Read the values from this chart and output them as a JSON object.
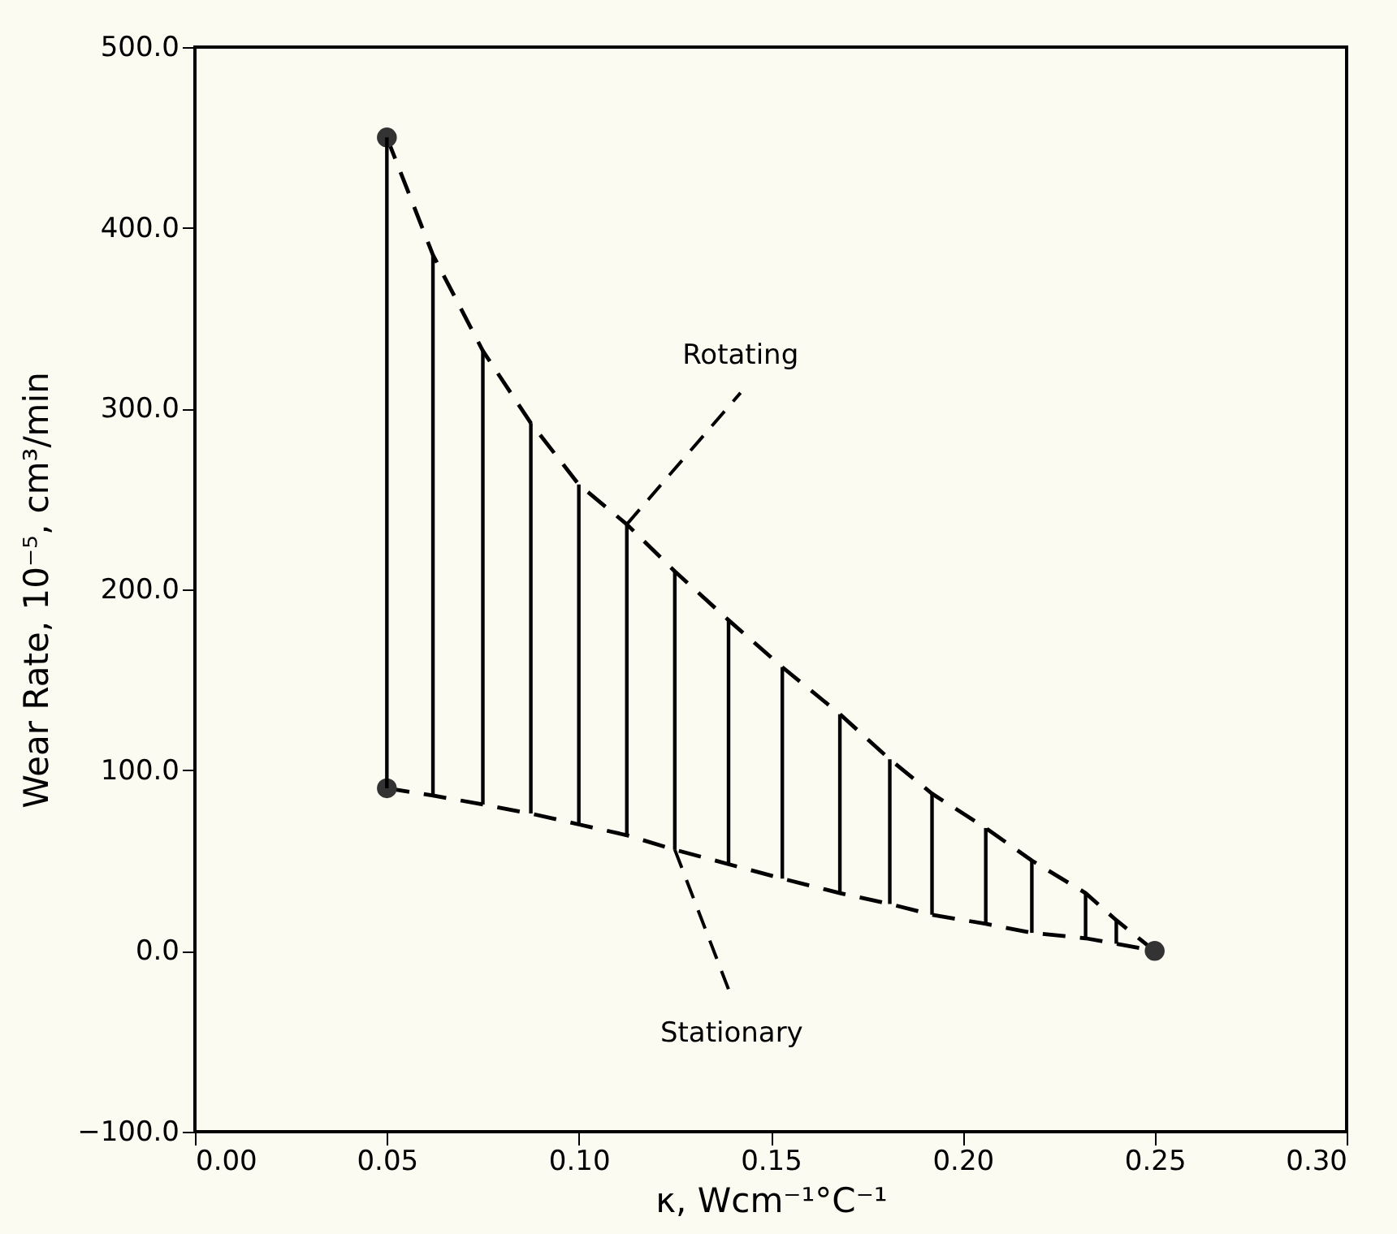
{
  "chart_data": {
    "type": "line",
    "xlabel": "κ, Wcm⁻¹°C⁻¹",
    "ylabel": "Wear Rate, 10⁻⁵, cm³/min",
    "x": [
      0.05,
      0.062,
      0.075,
      0.0875,
      0.1,
      0.1125,
      0.125,
      0.139,
      0.153,
      0.168,
      0.181,
      0.192,
      0.206,
      0.218,
      0.232,
      0.24,
      0.25
    ],
    "series": [
      {
        "color": "#000000",
        "line_style": "dashed",
        "values": [
          450,
          385,
          332,
          292,
          258,
          236,
          210,
          183,
          157,
          131,
          106,
          87,
          68,
          50,
          32,
          17,
          0
        ]
      },
      {
        "color": "#000000",
        "line_style": "dashed",
        "values": [
          90,
          86,
          81,
          76,
          70,
          64,
          56,
          48,
          40,
          32,
          26,
          20,
          15,
          10,
          7,
          4,
          0
        ]
      },
      {
        "type": "bar",
        "color": "#000000",
        "x": [
          0.05,
          0.062,
          0.075,
          0.0875,
          0.1,
          0.1125,
          0.125,
          0.139,
          0.153,
          0.168,
          0.181,
          0.192,
          0.206,
          0.218,
          0.232,
          0.24
        ],
        "base": [
          90,
          86,
          81,
          76,
          70,
          64,
          56,
          48,
          40,
          32,
          26,
          20,
          15,
          10,
          7,
          4
        ],
        "values": [
          360,
          299,
          251,
          216,
          188,
          172,
          154,
          135,
          117,
          99,
          80,
          67,
          53,
          40,
          25,
          13
        ]
      },
      {
        "type": "scatter",
        "color": "#333333",
        "marker": "circle",
        "x": [
          0.05,
          0.05,
          0.25
        ],
        "values": [
          450,
          90,
          0
        ]
      }
    ],
    "annotations": [
      {
        "text": "Rotating",
        "x": 0.1125,
        "y": 236
      },
      {
        "text": "Stationary",
        "x": 0.125,
        "y": 56
      }
    ],
    "xlim": [
      0.0,
      0.3
    ],
    "xticks": [
      {
        "value": 0,
        "label": "0.00"
      },
      {
        "value": 0.05,
        "label": "0.05"
      },
      {
        "value": 0.1,
        "label": "0.10"
      },
      {
        "value": 0.15,
        "label": "0.15"
      },
      {
        "value": 0.2,
        "label": "0.20"
      },
      {
        "value": 0.25,
        "label": "0.25"
      },
      {
        "value": 0.3,
        "label": "0.30"
      }
    ],
    "ylim": [
      -100,
      500
    ],
    "yticks": [
      {
        "value": -100,
        "label": "−100.0"
      },
      {
        "value": 0,
        "label": "0.0"
      },
      {
        "value": 100,
        "label": "100.0"
      },
      {
        "value": 200,
        "label": "200.0"
      },
      {
        "value": 300,
        "label": "300.0"
      },
      {
        "value": 400,
        "label": "400.0"
      },
      {
        "value": 500,
        "label": "500.0"
      }
    ],
    "grid": false
  }
}
